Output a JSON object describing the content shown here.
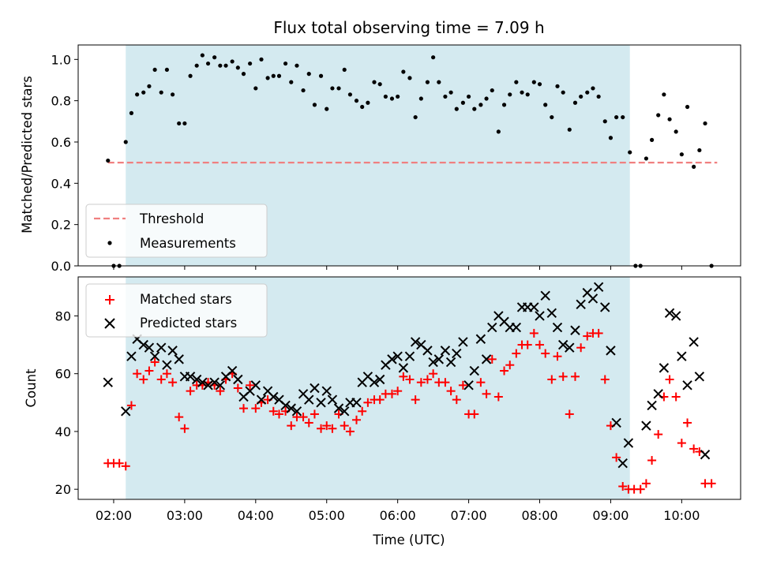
{
  "chart_data": [
    {
      "type": "scatter",
      "title": "Flux total observing time = 7.09 h",
      "ylabel": "Matched/Predicted stars",
      "xlabel": "",
      "ylim": [
        0,
        1.07
      ],
      "yticks": [
        0.0,
        0.2,
        0.4,
        0.6,
        0.8,
        1.0
      ],
      "ytick_labels": [
        "0.0",
        "0.2",
        "0.4",
        "0.6",
        "0.8",
        "1.0"
      ],
      "observing_window_hours": [
        2.17,
        9.27
      ],
      "shade_color": "#d4eaf0",
      "threshold": {
        "label": "Threshold",
        "value": 0.5,
        "x_range": [
          1.92,
          10.5
        ],
        "color": "#f08080"
      },
      "measurements": {
        "label": "Measurements",
        "color": "#000000",
        "x": [
          1.92,
          2.0,
          2.08,
          2.17,
          2.25,
          2.33,
          2.42,
          2.5,
          2.58,
          2.67,
          2.75,
          2.83,
          2.92,
          3.0,
          3.08,
          3.17,
          3.25,
          3.33,
          3.42,
          3.5,
          3.58,
          3.67,
          3.75,
          3.83,
          3.92,
          4.0,
          4.08,
          4.17,
          4.25,
          4.33,
          4.42,
          4.5,
          4.58,
          4.67,
          4.75,
          4.83,
          4.92,
          5.0,
          5.08,
          5.17,
          5.25,
          5.33,
          5.42,
          5.5,
          5.58,
          5.67,
          5.75,
          5.83,
          5.92,
          6.0,
          6.08,
          6.17,
          6.25,
          6.33,
          6.42,
          6.5,
          6.58,
          6.67,
          6.75,
          6.83,
          6.92,
          7.0,
          7.08,
          7.17,
          7.25,
          7.33,
          7.42,
          7.5,
          7.58,
          7.67,
          7.75,
          7.83,
          7.92,
          8.0,
          8.08,
          8.17,
          8.25,
          8.33,
          8.42,
          8.5,
          8.58,
          8.67,
          8.75,
          8.83,
          8.92,
          9.0,
          9.08,
          9.17,
          9.27,
          9.35,
          9.42,
          9.5,
          9.58,
          9.67,
          9.75,
          9.83,
          9.92,
          10.0,
          10.08,
          10.17,
          10.25,
          10.33,
          10.42
        ],
        "y": [
          0.51,
          0.0,
          0.0,
          0.6,
          0.74,
          0.83,
          0.84,
          0.87,
          0.95,
          0.84,
          0.95,
          0.83,
          0.69,
          0.69,
          0.92,
          0.97,
          1.02,
          0.98,
          1.01,
          0.97,
          0.97,
          0.99,
          0.96,
          0.93,
          0.98,
          0.86,
          1.0,
          0.91,
          0.92,
          0.92,
          0.98,
          0.89,
          0.97,
          0.85,
          0.93,
          0.78,
          0.92,
          0.76,
          0.86,
          0.86,
          0.95,
          0.83,
          0.8,
          0.77,
          0.79,
          0.89,
          0.88,
          0.82,
          0.81,
          0.82,
          0.94,
          0.91,
          0.72,
          0.81,
          0.89,
          1.01,
          0.89,
          0.82,
          0.84,
          0.76,
          0.79,
          0.82,
          0.76,
          0.78,
          0.81,
          0.85,
          0.65,
          0.78,
          0.83,
          0.89,
          0.84,
          0.83,
          0.89,
          0.88,
          0.78,
          0.72,
          0.87,
          0.84,
          0.66,
          0.79,
          0.82,
          0.84,
          0.86,
          0.82,
          0.7,
          0.62,
          0.72,
          0.72,
          0.55,
          0.0,
          0.0,
          0.52,
          0.61,
          0.73,
          0.83,
          0.71,
          0.65,
          0.54,
          0.77,
          0.48,
          0.56,
          0.69,
          0.0
        ]
      },
      "legend": {
        "entries": [
          "Threshold",
          "Measurements"
        ],
        "placement": "lower-left"
      }
    },
    {
      "type": "scatter",
      "title": "",
      "xlabel": "Time (UTC)",
      "ylabel": "Count",
      "xlim": [
        1.5,
        10.83
      ],
      "ylim": [
        16.5,
        93.5
      ],
      "yticks": [
        20,
        40,
        60,
        80
      ],
      "ytick_labels": [
        "20",
        "40",
        "60",
        "80"
      ],
      "xticks": [
        2,
        3,
        4,
        5,
        6,
        7,
        8,
        9,
        10
      ],
      "xtick_labels": [
        "02:00",
        "03:00",
        "04:00",
        "05:00",
        "06:00",
        "07:00",
        "08:00",
        "09:00",
        "10:00"
      ],
      "legend": {
        "entries": [
          "Matched stars",
          "Predicted stars"
        ],
        "placement": "upper-left"
      },
      "series": [
        {
          "name": "Matched stars",
          "marker": "+",
          "color": "#ff0000",
          "x": [
            1.92,
            2.0,
            2.08,
            2.17,
            2.25,
            2.33,
            2.42,
            2.5,
            2.58,
            2.67,
            2.75,
            2.83,
            2.92,
            3.0,
            3.08,
            3.17,
            3.25,
            3.33,
            3.42,
            3.5,
            3.58,
            3.67,
            3.75,
            3.83,
            3.92,
            4.0,
            4.08,
            4.17,
            4.25,
            4.33,
            4.42,
            4.5,
            4.58,
            4.67,
            4.75,
            4.83,
            4.92,
            5.0,
            5.08,
            5.17,
            5.25,
            5.33,
            5.42,
            5.5,
            5.58,
            5.67,
            5.75,
            5.83,
            5.92,
            6.0,
            6.08,
            6.17,
            6.25,
            6.33,
            6.42,
            6.5,
            6.58,
            6.67,
            6.75,
            6.83,
            6.92,
            7.0,
            7.08,
            7.17,
            7.25,
            7.33,
            7.42,
            7.5,
            7.58,
            7.67,
            7.75,
            7.83,
            7.92,
            8.0,
            8.08,
            8.17,
            8.25,
            8.33,
            8.42,
            8.5,
            8.58,
            8.67,
            8.75,
            8.83,
            8.92,
            9.0,
            9.08,
            9.17,
            9.25,
            9.33,
            9.42,
            9.5,
            9.58,
            9.67,
            9.75,
            9.83,
            9.92,
            10.0,
            10.08,
            10.17,
            10.25,
            10.33,
            10.42
          ],
          "y": [
            29,
            29,
            29,
            28,
            49,
            60,
            58,
            61,
            64,
            58,
            60,
            57,
            45,
            41,
            54,
            56,
            56,
            57,
            56,
            54,
            58,
            60,
            55,
            48,
            56,
            48,
            50,
            51,
            47,
            46,
            47,
            42,
            45,
            45,
            43,
            46,
            41,
            42,
            41,
            46,
            42,
            40,
            44,
            47,
            50,
            51,
            51,
            53,
            53,
            54,
            59,
            58,
            51,
            57,
            58,
            60,
            57,
            57,
            54,
            51,
            56,
            46,
            46,
            57,
            53,
            65,
            52,
            61,
            63,
            67,
            70,
            70,
            74,
            70,
            67,
            58,
            66,
            59,
            46,
            59,
            69,
            73,
            74,
            74,
            58,
            42,
            31,
            21,
            20,
            20,
            20,
            22,
            30,
            39,
            52,
            58,
            52,
            36,
            43,
            34,
            33,
            22,
            22
          ]
        },
        {
          "name": "Predicted stars",
          "marker": "x",
          "color": "#000000",
          "x": [
            1.92,
            2.17,
            2.25,
            2.33,
            2.42,
            2.5,
            2.58,
            2.67,
            2.75,
            2.83,
            2.92,
            3.0,
            3.08,
            3.17,
            3.25,
            3.33,
            3.42,
            3.5,
            3.58,
            3.67,
            3.75,
            3.83,
            3.92,
            4.0,
            4.08,
            4.17,
            4.25,
            4.33,
            4.42,
            4.5,
            4.58,
            4.67,
            4.75,
            4.83,
            4.92,
            5.0,
            5.08,
            5.17,
            5.25,
            5.33,
            5.42,
            5.5,
            5.58,
            5.67,
            5.75,
            5.83,
            5.92,
            6.0,
            6.08,
            6.17,
            6.25,
            6.33,
            6.42,
            6.5,
            6.58,
            6.67,
            6.75,
            6.83,
            6.92,
            7.0,
            7.08,
            7.17,
            7.25,
            7.33,
            7.42,
            7.5,
            7.58,
            7.67,
            7.75,
            7.83,
            7.92,
            8.0,
            8.08,
            8.17,
            8.25,
            8.33,
            8.42,
            8.5,
            8.58,
            8.67,
            8.75,
            8.83,
            8.92,
            9.0,
            9.08,
            9.17,
            9.25,
            9.5,
            9.58,
            9.67,
            9.75,
            9.83,
            9.92,
            10.0,
            10.08,
            10.17,
            10.25,
            10.33
          ],
          "y": [
            57,
            47,
            66,
            72,
            70,
            69,
            66,
            69,
            63,
            68,
            65,
            59,
            59,
            58,
            57,
            56,
            57,
            56,
            59,
            61,
            58,
            52,
            54,
            56,
            51,
            54,
            52,
            51,
            49,
            48,
            47,
            53,
            51,
            55,
            50,
            54,
            51,
            48,
            47,
            50,
            50,
            57,
            59,
            57,
            58,
            63,
            65,
            66,
            62,
            66,
            71,
            70,
            68,
            64,
            65,
            68,
            64,
            67,
            71,
            56,
            61,
            72,
            65,
            76,
            80,
            78,
            76,
            76,
            83,
            83,
            83,
            80,
            87,
            81,
            76,
            70,
            69,
            75,
            84,
            88,
            86,
            90,
            83,
            68,
            43,
            29,
            36,
            42,
            49,
            53,
            62,
            81,
            80,
            66,
            56,
            71,
            59,
            32
          ]
        }
      ]
    }
  ]
}
